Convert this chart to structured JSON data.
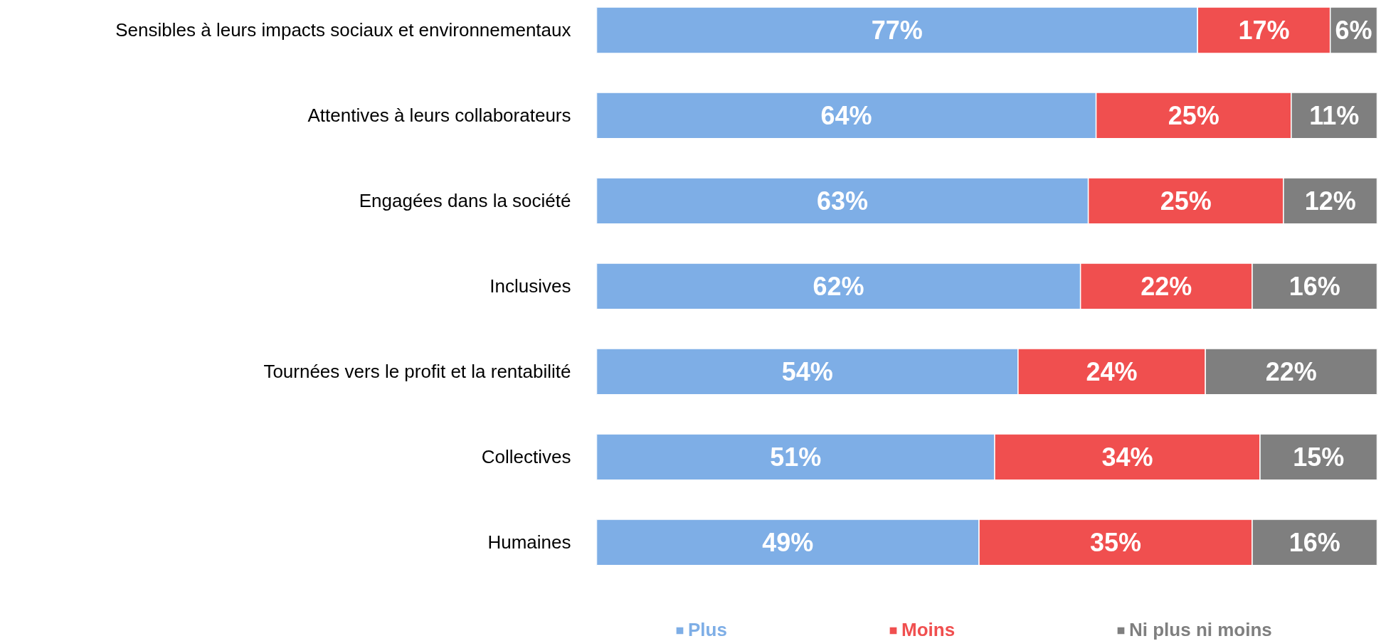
{
  "chart_data": {
    "type": "bar",
    "orientation": "horizontal",
    "stacked": true,
    "xlim": [
      0,
      100
    ],
    "tick_labels": "y",
    "legend": "bottom",
    "categories": [
      "Sensibles à leurs impacts sociaux et environnementaux",
      "Attentives à leurs collaborateurs",
      "Engagées dans la société",
      "Inclusives",
      "Tournées vers le profit et la rentabilité",
      "Collectives",
      "Humaines"
    ],
    "series": [
      {
        "name": "Plus",
        "color": "#7eaee6",
        "values": [
          77,
          64,
          63,
          62,
          54,
          51,
          49
        ],
        "value_labels": [
          "77%",
          "64%",
          "63%",
          "62%",
          "54%",
          "51%",
          "49%"
        ]
      },
      {
        "name": "Moins",
        "color": "#f04f4f",
        "values": [
          17,
          25,
          25,
          22,
          24,
          34,
          35
        ],
        "value_labels": [
          "17%",
          "25%",
          "25%",
          "22%",
          "24%",
          "34%",
          "35%"
        ]
      },
      {
        "name": "Ni plus ni moins",
        "color": "#7f7f7f",
        "values": [
          6,
          11,
          12,
          16,
          22,
          15,
          16
        ],
        "value_labels": [
          "6%",
          "11%",
          "12%",
          "16%",
          "22%",
          "15%",
          "16%"
        ]
      }
    ]
  }
}
